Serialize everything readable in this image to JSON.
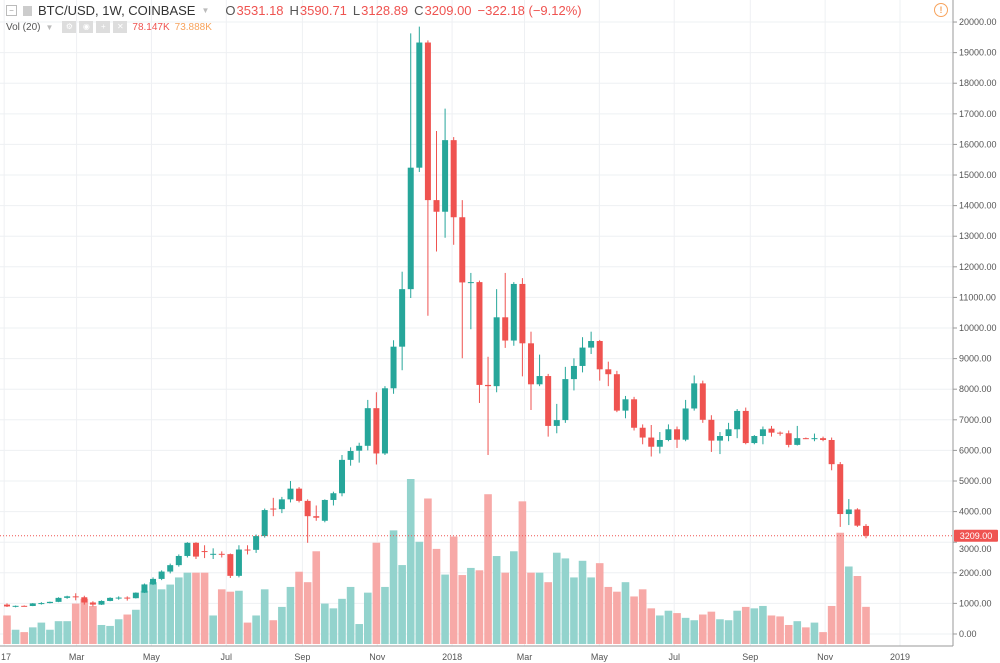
{
  "header": {
    "symbol": "BTC/USD, 1W, COINBASE",
    "open_label": "O",
    "open": "3531.18",
    "high_label": "H",
    "high": "3590.71",
    "low_label": "L",
    "low": "3128.89",
    "close_label": "C",
    "close": "3209.00",
    "change": "−322.18 (−9.12%)"
  },
  "volume_legend": {
    "label": "Vol (20)",
    "value": "78.147K",
    "ma_value": "73.888K"
  },
  "colors": {
    "up": "#26a69a",
    "down": "#ef5350",
    "volume_up": "#93d3cd",
    "volume_down": "#f7a9a7",
    "grid": "#eef0f3",
    "volume_ma": "#f7a35c",
    "last_price": "#ef5350"
  },
  "icons": [
    "collapse-icon",
    "symbol-icon",
    "settings-icon",
    "hide-icon",
    "add-icon",
    "remove-icon",
    "warning-icon"
  ],
  "chart_data": {
    "type": "candlestick",
    "ylim": [
      -360,
      20720
    ],
    "y_ticks": [
      "0.00",
      "1000.00",
      "2000.00",
      "3000.00",
      "4000.00",
      "5000.00",
      "6000.00",
      "7000.00",
      "8000.00",
      "9000.00",
      "10000.00",
      "11000.00",
      "12000.00",
      "13000.00",
      "14000.00",
      "15000.00",
      "16000.00",
      "17000.00",
      "18000.00",
      "19000.00",
      "20000.00"
    ],
    "last_price_label": "3209.00",
    "last_price": 3209.0,
    "x_ticks": [
      {
        "label": "17",
        "date": "2017-01-01"
      },
      {
        "label": "Mar",
        "date": "2017-03-01"
      },
      {
        "label": "May",
        "date": "2017-05-01"
      },
      {
        "label": "Jul",
        "date": "2017-07-01"
      },
      {
        "label": "Sep",
        "date": "2017-09-01"
      },
      {
        "label": "Nov",
        "date": "2017-11-01"
      },
      {
        "label": "2018",
        "date": "2018-01-01"
      },
      {
        "label": "Mar",
        "date": "2018-03-01"
      },
      {
        "label": "May",
        "date": "2018-05-01"
      },
      {
        "label": "Jul",
        "date": "2018-07-01"
      },
      {
        "label": "Sep",
        "date": "2018-09-01"
      },
      {
        "label": "Nov",
        "date": "2018-11-01"
      },
      {
        "label": "2019",
        "date": "2019-01-01"
      }
    ],
    "grid": true,
    "dates": [
      "2017-01-09",
      "2017-01-16",
      "2017-01-23",
      "2017-01-30",
      "2017-02-06",
      "2017-02-13",
      "2017-02-20",
      "2017-02-27",
      "2017-03-06",
      "2017-03-13",
      "2017-03-20",
      "2017-03-27",
      "2017-04-03",
      "2017-04-10",
      "2017-04-17",
      "2017-04-24",
      "2017-05-01",
      "2017-05-08",
      "2017-05-15",
      "2017-05-22",
      "2017-05-29",
      "2017-06-05",
      "2017-06-12",
      "2017-06-19",
      "2017-06-26",
      "2017-07-03",
      "2017-07-10",
      "2017-07-17",
      "2017-07-24",
      "2017-07-31",
      "2017-08-07",
      "2017-08-14",
      "2017-08-21",
      "2017-08-28",
      "2017-09-04",
      "2017-09-11",
      "2017-09-18",
      "2017-09-25",
      "2017-10-02",
      "2017-10-09",
      "2017-10-16",
      "2017-10-23",
      "2017-10-30",
      "2017-11-06",
      "2017-11-13",
      "2017-11-20",
      "2017-11-27",
      "2017-12-04",
      "2017-12-11",
      "2017-12-18",
      "2017-12-25",
      "2018-01-01",
      "2018-01-08",
      "2018-01-15",
      "2018-01-22",
      "2018-01-29",
      "2018-02-05",
      "2018-02-12",
      "2018-02-19",
      "2018-02-26",
      "2018-03-05",
      "2018-03-12",
      "2018-03-19",
      "2018-03-26",
      "2018-04-02",
      "2018-04-09",
      "2018-04-16",
      "2018-04-23",
      "2018-04-30",
      "2018-05-07",
      "2018-05-14",
      "2018-05-21",
      "2018-05-28",
      "2018-06-04",
      "2018-06-11",
      "2018-06-18",
      "2018-06-25",
      "2018-07-02",
      "2018-07-09",
      "2018-07-16",
      "2018-07-23",
      "2018-07-30",
      "2018-08-06",
      "2018-08-13",
      "2018-08-20",
      "2018-08-27",
      "2018-09-03",
      "2018-09-10",
      "2018-09-17",
      "2018-09-24",
      "2018-10-01",
      "2018-10-08",
      "2018-10-15",
      "2018-10-22",
      "2018-10-29",
      "2018-11-05",
      "2018-11-12",
      "2018-11-19",
      "2018-11-26",
      "2018-12-03",
      "2018-12-10"
    ],
    "ohlc": [
      [
        960,
        1000,
        880,
        900
      ],
      [
        900,
        930,
        870,
        920
      ],
      [
        920,
        935,
        900,
        915
      ],
      [
        915,
        1010,
        910,
        1000
      ],
      [
        1000,
        1040,
        960,
        1010
      ],
      [
        1010,
        1060,
        1000,
        1050
      ],
      [
        1050,
        1200,
        1040,
        1180
      ],
      [
        1180,
        1250,
        1150,
        1230
      ],
      [
        1230,
        1330,
        1100,
        1200
      ],
      [
        1200,
        1250,
        960,
        1030
      ],
      [
        1030,
        1070,
        900,
        960
      ],
      [
        960,
        1100,
        950,
        1080
      ],
      [
        1080,
        1200,
        1070,
        1180
      ],
      [
        1180,
        1230,
        1120,
        1190
      ],
      [
        1190,
        1230,
        1090,
        1170
      ],
      [
        1170,
        1360,
        1160,
        1350
      ],
      [
        1350,
        1650,
        1340,
        1620
      ],
      [
        1620,
        1850,
        1600,
        1800
      ],
      [
        1800,
        2080,
        1760,
        2040
      ],
      [
        2040,
        2300,
        1980,
        2250
      ],
      [
        2250,
        2600,
        2200,
        2550
      ],
      [
        2550,
        3000,
        2500,
        2980
      ],
      [
        2980,
        3000,
        2450,
        2530
      ],
      [
        2710,
        2900,
        2480,
        2690
      ],
      [
        2610,
        2800,
        2450,
        2620
      ],
      [
        2620,
        2700,
        2500,
        2610
      ],
      [
        2610,
        2630,
        1830,
        1900
      ],
      [
        1900,
        2900,
        1850,
        2760
      ],
      [
        2760,
        2900,
        2600,
        2750
      ],
      [
        2750,
        3250,
        2650,
        3200
      ],
      [
        3200,
        4100,
        3150,
        4050
      ],
      [
        4100,
        4450,
        3850,
        4080
      ],
      [
        4080,
        4480,
        3950,
        4400
      ],
      [
        4400,
        5000,
        4300,
        4750
      ],
      [
        4750,
        4800,
        4300,
        4350
      ],
      [
        4350,
        4400,
        2980,
        3850
      ],
      [
        3850,
        4200,
        3700,
        3800
      ],
      [
        3700,
        4400,
        3650,
        4380
      ],
      [
        4380,
        4650,
        4200,
        4600
      ],
      [
        4600,
        5850,
        4500,
        5690
      ],
      [
        5690,
        6100,
        5500,
        5980
      ],
      [
        5990,
        6250,
        5600,
        6150
      ],
      [
        6150,
        7650,
        6000,
        7380
      ],
      [
        7380,
        7900,
        5540,
        5900
      ],
      [
        5900,
        8100,
        5850,
        8030
      ],
      [
        8030,
        9600,
        7850,
        9390
      ],
      [
        9390,
        11840,
        8620,
        11270
      ],
      [
        11270,
        19630,
        10980,
        15240
      ],
      [
        15240,
        19850,
        15100,
        19330
      ],
      [
        19330,
        19400,
        10400,
        14180
      ],
      [
        14180,
        16440,
        12500,
        13800
      ],
      [
        13800,
        17170,
        12950,
        16140
      ],
      [
        16140,
        16240,
        12720,
        13620
      ],
      [
        13620,
        14180,
        9010,
        11490
      ],
      [
        11490,
        11800,
        9960,
        11500
      ],
      [
        11500,
        11550,
        7550,
        8140
      ],
      [
        8140,
        9060,
        5850,
        8100
      ],
      [
        8100,
        11270,
        7900,
        10350
      ],
      [
        10350,
        11800,
        9350,
        9590
      ],
      [
        9590,
        11500,
        9420,
        11440
      ],
      [
        11440,
        11630,
        8420,
        9500
      ],
      [
        9500,
        9880,
        7320,
        8160
      ],
      [
        8160,
        9130,
        8100,
        8430
      ],
      [
        8430,
        8500,
        6450,
        6800
      ],
      [
        6800,
        7520,
        6560,
        6990
      ],
      [
        6990,
        8730,
        6900,
        8330
      ],
      [
        8330,
        9010,
        7960,
        8760
      ],
      [
        8760,
        9700,
        8550,
        9360
      ],
      [
        9360,
        9880,
        9150,
        9575
      ],
      [
        9575,
        9610,
        8280,
        8650
      ],
      [
        8650,
        8900,
        8100,
        8490
      ],
      [
        8490,
        8600,
        7250,
        7300
      ],
      [
        7300,
        7780,
        7050,
        7670
      ],
      [
        7670,
        7750,
        6650,
        6740
      ],
      [
        6740,
        6850,
        6200,
        6420
      ],
      [
        6420,
        6830,
        5800,
        6120
      ],
      [
        6120,
        6600,
        5900,
        6340
      ],
      [
        6340,
        6850,
        6300,
        6690
      ],
      [
        6690,
        6780,
        6080,
        6350
      ],
      [
        6350,
        7650,
        6300,
        7370
      ],
      [
        7370,
        8450,
        7300,
        8190
      ],
      [
        8190,
        8280,
        6900,
        7000
      ],
      [
        7000,
        7150,
        5950,
        6320
      ],
      [
        6320,
        6600,
        5880,
        6470
      ],
      [
        6470,
        6900,
        6300,
        6690
      ],
      [
        6690,
        7350,
        6400,
        7290
      ],
      [
        7290,
        7400,
        6200,
        6240
      ],
      [
        6240,
        6500,
        6200,
        6470
      ],
      [
        6470,
        6780,
        6200,
        6690
      ],
      [
        6710,
        6800,
        6450,
        6580
      ],
      [
        6580,
        6620,
        6480,
        6570
      ],
      [
        6560,
        6650,
        6100,
        6180
      ],
      [
        6180,
        6800,
        6160,
        6400
      ],
      [
        6400,
        6420,
        6370,
        6395
      ],
      [
        6395,
        6550,
        6300,
        6400
      ],
      [
        6400,
        6450,
        6300,
        6340
      ],
      [
        6340,
        6420,
        5350,
        5550
      ],
      [
        5550,
        5620,
        3500,
        3920
      ],
      [
        3920,
        4410,
        3560,
        4070
      ],
      [
        4070,
        4110,
        3500,
        3540
      ],
      [
        3531.18,
        3590.71,
        3128.89,
        3209.0
      ]
    ],
    "volume_k": [
      60,
      30,
      25,
      35,
      45,
      30,
      48,
      48,
      85,
      95,
      80,
      40,
      38,
      52,
      62,
      72,
      112,
      130,
      115,
      125,
      140,
      150,
      150,
      150,
      60,
      115,
      110,
      112,
      45,
      60,
      115,
      50,
      78,
      120,
      152,
      130,
      195,
      85,
      75,
      95,
      120,
      42,
      108,
      213,
      120,
      239,
      166,
      347,
      215,
      306,
      200,
      146,
      226,
      145,
      160,
      155,
      315,
      185,
      150,
      195,
      300,
      150,
      150,
      130,
      192,
      180,
      140,
      175,
      140,
      170,
      120,
      110,
      130,
      100,
      115,
      75,
      60,
      70,
      65,
      55,
      50,
      62,
      68,
      52,
      50,
      70,
      78,
      75,
      80,
      60,
      58,
      40,
      48,
      35,
      45,
      25,
      80,
      234,
      163,
      143,
      78.147
    ]
  }
}
